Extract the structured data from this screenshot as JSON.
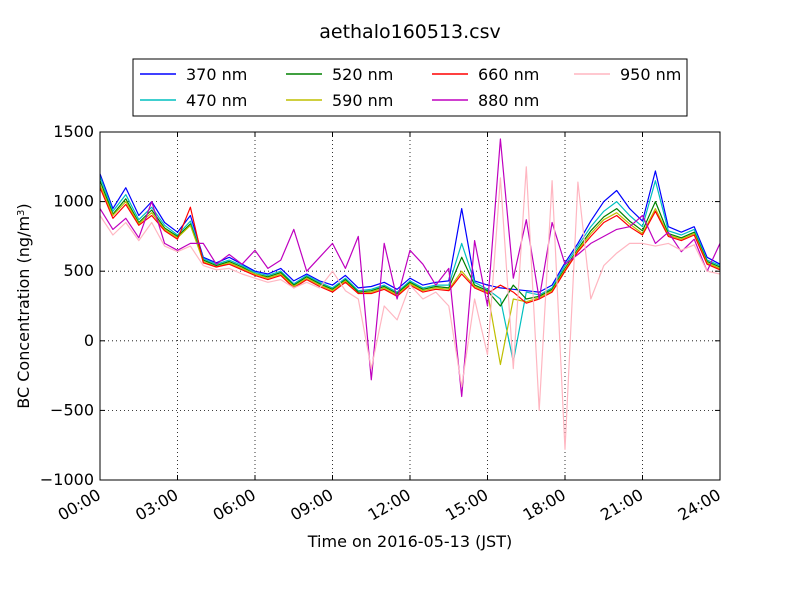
{
  "chart_data": {
    "type": "line",
    "title": "aethalo160513.csv",
    "xlabel": "Time on 2016-05-13 (JST)",
    "ylabel": "BC Concentration (ng/m³)",
    "ylabel_parts": {
      "main": "BC Concentration (ng/m",
      "sup": "3",
      "close": ")"
    },
    "xlim_hours": [
      0,
      24
    ],
    "ylim": [
      -1000,
      1500
    ],
    "grid": true,
    "legend_position": "top-center (above plot)",
    "x_ticks": [
      {
        "hour": 0,
        "label": "00:00"
      },
      {
        "hour": 3,
        "label": "03:00"
      },
      {
        "hour": 6,
        "label": "06:00"
      },
      {
        "hour": 9,
        "label": "09:00"
      },
      {
        "hour": 12,
        "label": "12:00"
      },
      {
        "hour": 15,
        "label": "15:00"
      },
      {
        "hour": 18,
        "label": "18:00"
      },
      {
        "hour": 21,
        "label": "21:00"
      },
      {
        "hour": 24,
        "label": "24:00"
      }
    ],
    "y_ticks": [
      {
        "value": 1500,
        "label": "1500"
      },
      {
        "value": 1000,
        "label": "1000"
      },
      {
        "value": 500,
        "label": "500"
      },
      {
        "value": 0,
        "label": "0"
      },
      {
        "value": -500,
        "label": "−500"
      },
      {
        "value": -1000,
        "label": "−1000"
      }
    ],
    "x_hours": [
      0,
      0.5,
      1,
      1.5,
      2,
      2.5,
      3,
      3.5,
      4,
      4.5,
      5,
      5.5,
      6,
      6.5,
      7,
      7.5,
      8,
      8.5,
      9,
      9.5,
      10,
      10.5,
      11,
      11.5,
      12,
      12.5,
      13,
      13.5,
      14,
      14.5,
      15,
      15.5,
      16,
      16.5,
      17,
      17.5,
      18,
      18.5,
      19,
      19.5,
      20,
      20.5,
      21,
      21.5,
      22,
      22.5,
      23,
      23.5,
      24
    ],
    "series": [
      {
        "name": "370 nm",
        "color": "#0000ff",
        "values": [
          1200,
          950,
          1100,
          900,
          1000,
          850,
          780,
          900,
          600,
          560,
          600,
          550,
          500,
          480,
          520,
          430,
          480,
          430,
          400,
          470,
          380,
          390,
          420,
          370,
          450,
          400,
          420,
          430,
          950,
          430,
          400,
          380,
          370,
          360,
          350,
          400,
          560,
          700,
          860,
          1000,
          1080,
          950,
          860,
          1220,
          820,
          780,
          820,
          600,
          550
        ]
      },
      {
        "name": "470 nm",
        "color": "#00bfbf",
        "values": [
          1180,
          930,
          1050,
          870,
          960,
          830,
          760,
          860,
          590,
          550,
          580,
          540,
          490,
          470,
          500,
          410,
          470,
          420,
          380,
          450,
          360,
          370,
          400,
          350,
          430,
          380,
          400,
          400,
          700,
          420,
          370,
          300,
          -150,
          350,
          330,
          380,
          540,
          680,
          820,
          930,
          1000,
          900,
          820,
          1150,
          790,
          760,
          800,
          580,
          540
        ]
      },
      {
        "name": "520 nm",
        "color": "#008000",
        "values": [
          1150,
          910,
          1020,
          850,
          940,
          810,
          750,
          840,
          580,
          540,
          570,
          530,
          480,
          460,
          490,
          400,
          460,
          410,
          370,
          440,
          350,
          360,
          390,
          340,
          420,
          370,
          390,
          380,
          600,
          400,
          360,
          250,
          400,
          300,
          320,
          370,
          520,
          660,
          790,
          890,
          950,
          860,
          790,
          1000,
          770,
          740,
          780,
          570,
          530
        ]
      },
      {
        "name": "590 nm",
        "color": "#bfbf00",
        "values": [
          1120,
          900,
          1000,
          840,
          920,
          800,
          740,
          830,
          570,
          530,
          560,
          520,
          480,
          450,
          480,
          390,
          450,
          400,
          360,
          430,
          340,
          350,
          380,
          330,
          410,
          360,
          380,
          370,
          500,
          390,
          350,
          -170,
          300,
          280,
          310,
          360,
          510,
          650,
          770,
          870,
          920,
          840,
          770,
          950,
          760,
          730,
          770,
          560,
          520
        ]
      },
      {
        "name": "660 nm",
        "color": "#ff0000",
        "values": [
          1100,
          880,
          980,
          830,
          900,
          790,
          730,
          960,
          560,
          530,
          550,
          510,
          470,
          440,
          470,
          380,
          440,
          390,
          350,
          420,
          340,
          340,
          370,
          320,
          400,
          350,
          370,
          360,
          480,
          380,
          340,
          400,
          350,
          270,
          300,
          350,
          500,
          640,
          750,
          850,
          900,
          820,
          760,
          930,
          750,
          720,
          760,
          550,
          510
        ]
      },
      {
        "name": "880 nm",
        "color": "#bf00bf",
        "values": [
          950,
          800,
          880,
          740,
          1000,
          700,
          650,
          700,
          700,
          550,
          620,
          550,
          650,
          520,
          580,
          800,
          500,
          600,
          700,
          520,
          750,
          -280,
          700,
          300,
          650,
          550,
          400,
          520,
          -400,
          720,
          250,
          1450,
          450,
          870,
          300,
          850,
          550,
          620,
          700,
          750,
          800,
          820,
          900,
          700,
          780,
          640,
          730,
          500,
          700
        ]
      },
      {
        "name": "950 nm",
        "color": "#ffb6c1",
        "values": [
          900,
          760,
          850,
          720,
          850,
          680,
          640,
          680,
          540,
          510,
          520,
          480,
          450,
          420,
          440,
          380,
          420,
          380,
          500,
          360,
          300,
          -200,
          250,
          150,
          400,
          300,
          350,
          250,
          -330,
          300,
          -100,
          1170,
          -200,
          1250,
          -500,
          1150,
          -780,
          1140,
          300,
          540,
          630,
          700,
          700,
          680,
          700,
          650,
          690,
          500,
          480
        ]
      }
    ]
  }
}
